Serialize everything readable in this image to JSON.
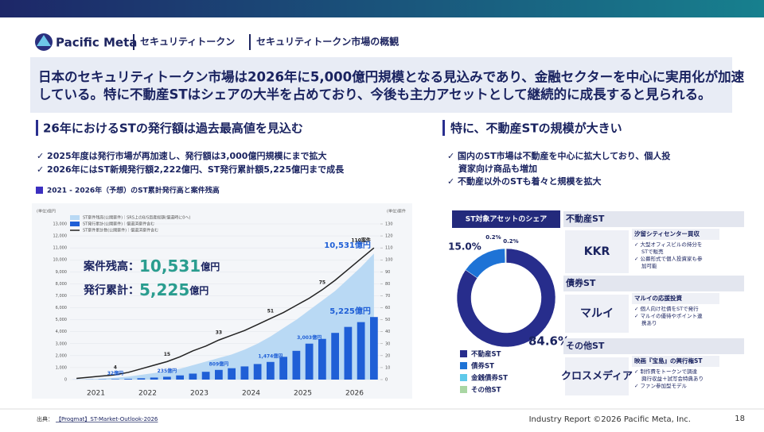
{
  "header": {
    "logo": "Pacific Meta",
    "breadcrumb": [
      "セキュリティトークン",
      "セキュリティトークン市場の概観"
    ]
  },
  "summary": [
    "日本のセキュリティトークン市場は2026年に5,000億円規模となる見込みであり、金融セクターを中心に実用化が加速",
    "している。特に不動産STはシェアの大半を占めており、今後も主力アセットとして継続的に成長すると見られる。"
  ],
  "left": {
    "heading": "26年におけるSTの発行額は過去最高値を見込む",
    "bullets": [
      "✓ 2025年度は発行市場が再加速し、発行額は3,000億円規模にまで拡大",
      "✓ 2026年にはST新規発行額2,222億円、ST発行累計額5,225億円まで成長"
    ],
    "caption": "2021 - 2026年（予想）のST累計発行高と案件残高"
  },
  "chart": {
    "type": "combo",
    "y_unit": "(単位)億円",
    "y2_unit": "(単位)案件",
    "categories": [
      "2021",
      null,
      null,
      null,
      "2022",
      null,
      null,
      null,
      "2023",
      null,
      null,
      null,
      "2024",
      null,
      null,
      null,
      "2025",
      null,
      null,
      null,
      "2026",
      null,
      null,
      null
    ],
    "ylim": [
      0,
      13000
    ],
    "yticks": [
      0,
      {
        "value": 1000,
        "label": "1,000"
      },
      {
        "value": 2000,
        "label": "2,000"
      },
      {
        "value": 3000,
        "label": "3,000"
      },
      {
        "value": 4000,
        "label": "4,000"
      },
      {
        "value": 5000,
        "label": "5,000"
      },
      {
        "value": 6000,
        "label": "6,000"
      },
      {
        "value": 7000,
        "label": "7,000"
      },
      {
        "value": 8000,
        "label": "8,000"
      },
      {
        "value": 9000,
        "label": "9,000"
      },
      {
        "value": 10000,
        "label": "10,000"
      },
      {
        "value": 11000,
        "label": "11,000"
      },
      {
        "value": 12000,
        "label": "12,000"
      },
      {
        "value": 13000,
        "label": "13,000"
      }
    ],
    "y2lim": [
      0,
      130
    ],
    "y2ticks": [
      0,
      10,
      20,
      30,
      40,
      50,
      60,
      70,
      80,
      90,
      100,
      110,
      120,
      130
    ],
    "series": [
      {
        "name": "ST案件残高(公開案件)｜SRS上のB/S資産総額(償還時に0へ)",
        "color": "#b9d9f4",
        "kind": "area",
        "values": [
          20,
          40,
          80,
          150,
          250,
          400,
          550,
          700,
          900,
          1200,
          1500,
          1800,
          2100,
          2500,
          3000,
          3600,
          4300,
          5000,
          5800,
          6600,
          7400,
          8400,
          9400,
          10531
        ],
        "value_labels": [
          null,
          null,
          null,
          null,
          null,
          null,
          null,
          null,
          null,
          null,
          null,
          null,
          null,
          null,
          null,
          null,
          null,
          null,
          null,
          null,
          null,
          null,
          null,
          "10,531億円"
        ]
      },
      {
        "name": "ST発行累計(公開案件)｜償還済案件含む",
        "color": "#1f5fd6",
        "kind": "bar",
        "values": [
          5,
          10,
          20,
          32,
          60,
          110,
          170,
          235,
          350,
          500,
          650,
          809,
          950,
          1100,
          1300,
          1474,
          1900,
          2400,
          3003,
          3400,
          3900,
          4400,
          4800,
          5225
        ],
        "value_labels": [
          null,
          null,
          null,
          "32億円",
          null,
          null,
          null,
          "235億円",
          null,
          null,
          null,
          "809億円",
          null,
          null,
          null,
          "1,474億円",
          null,
          null,
          "3,003億円",
          null,
          null,
          null,
          null,
          "5,225億円"
        ]
      },
      {
        "name": "ST案件累計数(公開案件)｜償還済案件含む",
        "color": "#222222",
        "kind": "line",
        "axis": "y2",
        "values": [
          1,
          2,
          3,
          4,
          6,
          9,
          12,
          15,
          19,
          24,
          28,
          33,
          37,
          41,
          46,
          51,
          56,
          62,
          68,
          75,
          83,
          92,
          101,
          110
        ],
        "value_labels": [
          null,
          null,
          null,
          "4",
          null,
          null,
          null,
          "15",
          null,
          null,
          null,
          "33",
          null,
          null,
          null,
          "51",
          null,
          null,
          null,
          "75",
          null,
          null,
          null,
          "110案件"
        ]
      }
    ],
    "callouts": [
      [
        "案件残高：",
        "10,531",
        "億円"
      ],
      [
        "発行累計：",
        "5,225",
        "億円"
      ]
    ]
  },
  "right": {
    "heading": "特に、不動産STの規模が大きい",
    "bullets": [
      "✓ 国内のST市場は不動産を中心に拡大しており、個人投",
      "資家向け商品も増加",
      "✓ 不動産以外のSTも着々と規模を拡大"
    ]
  },
  "donut": {
    "type": "pie",
    "title": "ST対象アセットのシェア",
    "categories": [
      "不動産ST",
      "債券ST",
      "金銭債券ST",
      "その他ST"
    ],
    "values": [
      84.6,
      15.0,
      0.2,
      0.2
    ],
    "value_labels": [
      "84.6%",
      "15.0%",
      "0.2%",
      "0.2%"
    ],
    "colors": [
      "#272d8c",
      "#1e73d6",
      "#5fc9ea",
      "#a9d6a3"
    ]
  },
  "cases": [
    {
      "category": "不動産ST",
      "company": "KKR",
      "title": "汐留シティセンター買収",
      "points": [
        "✓ 大型オフィスビルの持分を",
        "STで販売",
        "✓ 公募形式で個人投資家も参",
        "加可能"
      ]
    },
    {
      "category": "債券ST",
      "company": "マルイ",
      "title": "マルイの応援投資",
      "points": [
        "✓ 個人向け社債をSTで発行",
        "✓ マルイの優待やポイント連",
        "携あり"
      ]
    },
    {
      "category": "その他ST",
      "company": "クロスメディア",
      "title": "映画『宝島』の興行権ST",
      "points": [
        "✓ 制作費をトークンで調達",
        "興行収益＋試写会特典あり",
        "✓ ファン参加型モデル"
      ]
    }
  ],
  "footer": {
    "source_label": "出典：",
    "source": "【Progmat】ST-Market-Outlook-2026",
    "copyright": "Industry Report ©2026 Pacific Meta, Inc.",
    "page": "18"
  }
}
